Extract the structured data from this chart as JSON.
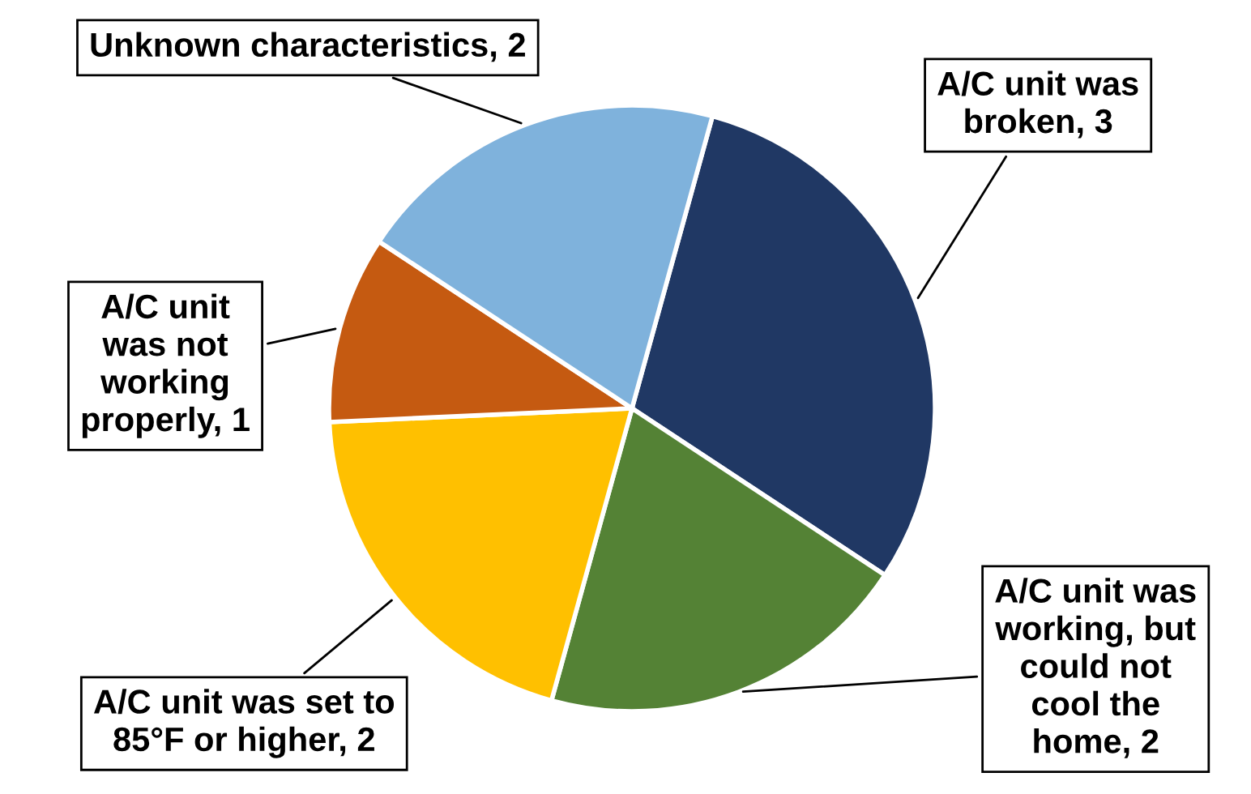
{
  "chart_data": {
    "type": "pie",
    "categories": [
      "A/C unit was broken, 3",
      "A/C unit was working, but could not cool the home, 2",
      "A/C unit was set to 85°F or higher, 2",
      "A/C unit was not working properly, 1",
      "Unknown characteristics, 2"
    ],
    "values": [
      3,
      2,
      2,
      1,
      2
    ],
    "colors": [
      "#203864",
      "#548235",
      "#ffc000",
      "#c55a11",
      "#7fb2dc"
    ]
  }
}
